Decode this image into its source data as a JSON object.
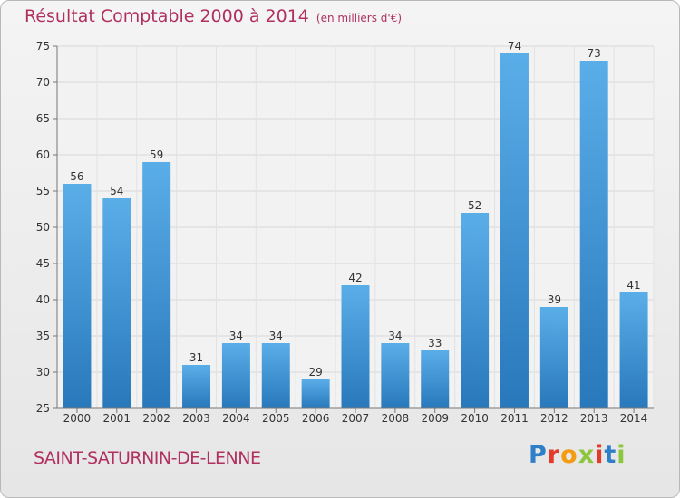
{
  "title": "Résultat Comptable 2000 à 2014",
  "unit": "(en milliers d'€)",
  "place": "SAINT-SATURNIN-DE-LENNE",
  "logo": {
    "letters": [
      "P",
      "r",
      "o",
      "x",
      "i",
      "t",
      "i"
    ],
    "colors": [
      "#2f7fc8",
      "#e43a2a",
      "#f39c12",
      "#8cc63f",
      "#e43a2a",
      "#2f7fc8",
      "#8cc63f"
    ]
  },
  "colors": {
    "accent": "#b03060",
    "bar": "#4a9de0",
    "bar_dark": "#2878bb",
    "grid": "#d8d8d8"
  },
  "chart_data": {
    "type": "bar",
    "title": "Résultat Comptable 2000 à 2014 (en milliers d'€)",
    "categories": [
      "2000",
      "2001",
      "2002",
      "2003",
      "2004",
      "2005",
      "2006",
      "2007",
      "2008",
      "2009",
      "2010",
      "2011",
      "2012",
      "2013",
      "2014"
    ],
    "values": [
      56,
      54,
      59,
      31,
      34,
      34,
      29,
      42,
      34,
      33,
      52,
      74,
      39,
      73,
      41
    ],
    "ylim": [
      25,
      75
    ],
    "yticks": [
      25,
      30,
      35,
      40,
      45,
      50,
      55,
      60,
      65,
      70,
      75
    ],
    "xlabel": "",
    "ylabel": "",
    "grid": true
  }
}
